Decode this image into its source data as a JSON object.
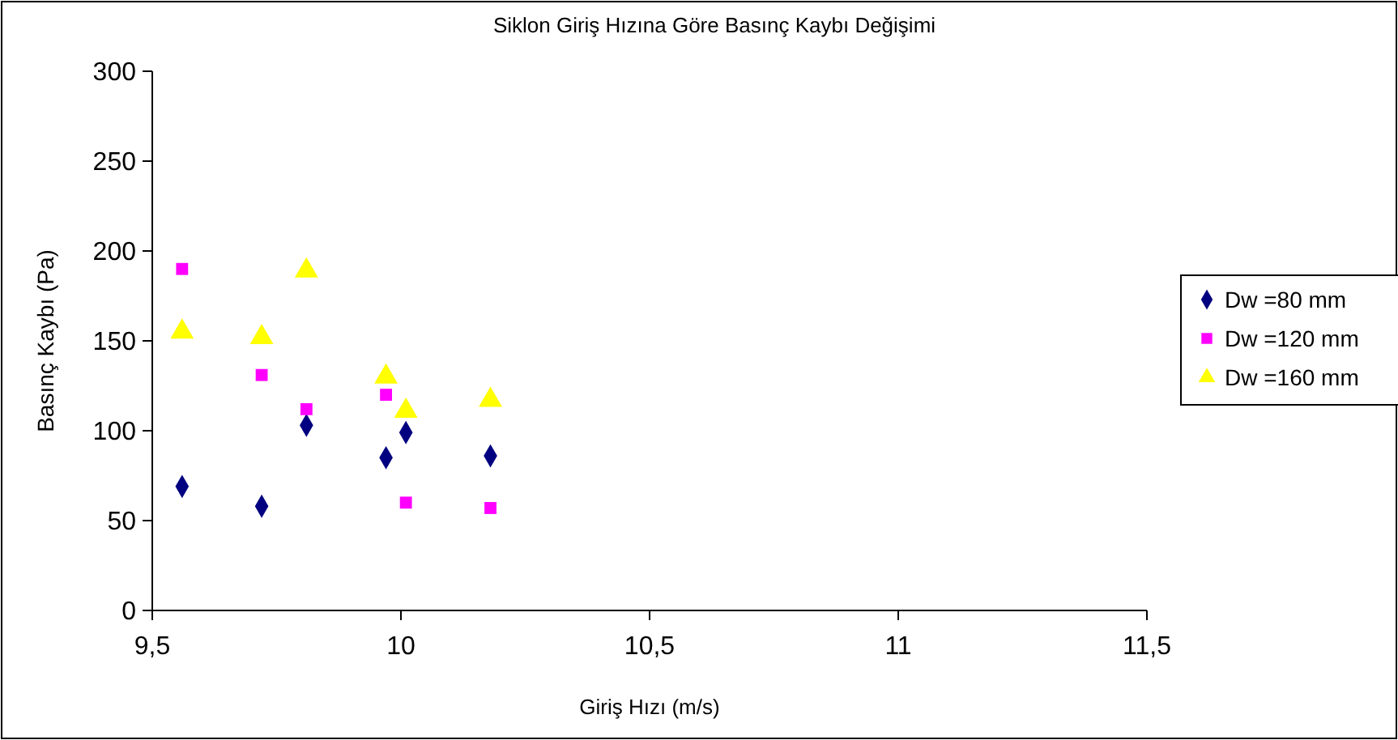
{
  "chart_data": {
    "type": "scatter",
    "title": "Siklon Giriş Hızına Göre Basınç Kaybı Değişimi",
    "xlabel": "Giriş Hızı (m/s)",
    "ylabel": "Basınç Kaybı (Pa)",
    "x": [
      9.56,
      9.72,
      9.81,
      9.97,
      10.01,
      10.18
    ],
    "series": [
      {
        "name": "Dw =80 mm",
        "color": "#000080",
        "marker": "diamond",
        "values": [
          69,
          58,
          103,
          85,
          99,
          86
        ]
      },
      {
        "name": "Dw =120 mm",
        "color": "#ff00ff",
        "marker": "square",
        "values": [
          190,
          131,
          112,
          120,
          60,
          57
        ]
      },
      {
        "name": "Dw =160 mm",
        "color": "#ffff00",
        "marker": "triangle",
        "values": [
          155,
          152,
          189,
          130,
          111,
          117
        ]
      }
    ],
    "xlim": [
      9.5,
      11.5
    ],
    "xticks": [
      {
        "value": 9.5,
        "label": "9,5"
      },
      10,
      {
        "value": 10.5,
        "label": "10,5"
      },
      11,
      {
        "value": 11.5,
        "label": "11,5"
      }
    ],
    "ylim": [
      0,
      300
    ],
    "yticks": [
      0,
      50,
      100,
      150,
      200,
      250,
      300
    ],
    "grid": false,
    "legend": "right"
  }
}
